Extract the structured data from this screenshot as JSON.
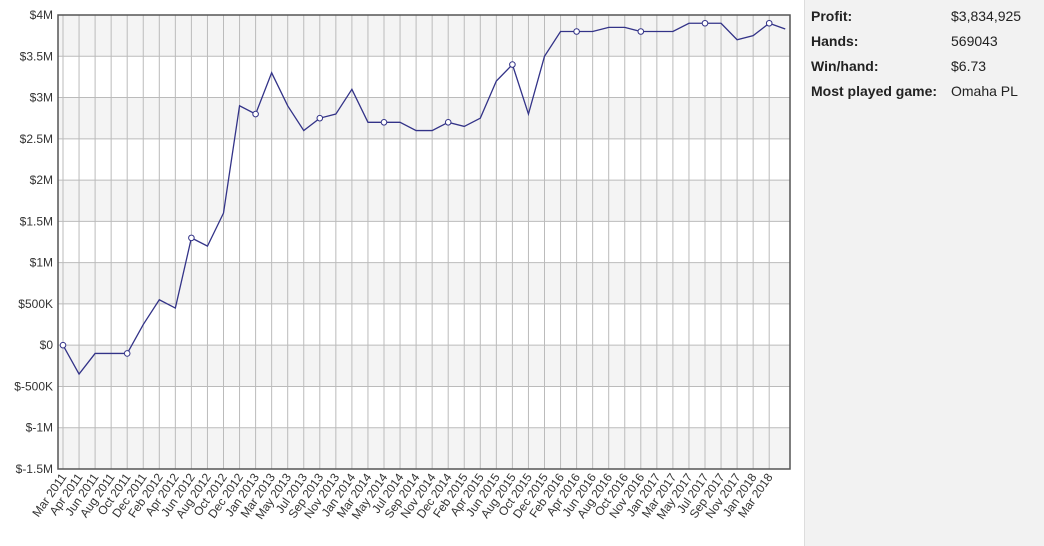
{
  "chart_data": {
    "type": "line",
    "categories": [
      "Mar 2011",
      "Apr 2011",
      "Jun 2011",
      "Aug 2011",
      "Oct 2011",
      "Dec 2011",
      "Feb 2012",
      "Apr 2012",
      "Jun 2012",
      "Aug 2012",
      "Oct 2012",
      "Dec 2012",
      "Jan 2013",
      "Mar 2013",
      "May 2013",
      "Jul 2013",
      "Sep 2013",
      "Nov 2013",
      "Jan 2014",
      "Mar 2014",
      "May 2014",
      "Jul 2014",
      "Sep 2014",
      "Nov 2014",
      "Dec 2014",
      "Feb 2015",
      "Apr 2015",
      "Jun 2015",
      "Aug 2015",
      "Oct 2015",
      "Dec 2015",
      "Feb 2016",
      "Apr 2016",
      "Jun 2016",
      "Aug 2016",
      "Oct 2016",
      "Nov 2016",
      "Jan 2017",
      "Mar 2017",
      "May 2017",
      "Jul 2017",
      "Sep 2017",
      "Nov 2017",
      "Jan 2018",
      "Mar 2018",
      null
    ],
    "series": [
      {
        "color": "#333388",
        "values": [
          0,
          -350000,
          -100000,
          -100000,
          -100000,
          250000,
          550000,
          450000,
          1300000,
          1200000,
          1600000,
          2900000,
          2800000,
          3300000,
          2900000,
          2600000,
          2750000,
          2800000,
          3100000,
          2700000,
          2700000,
          2700000,
          2600000,
          2600000,
          2700000,
          2650000,
          2750000,
          3200000,
          3400000,
          2800000,
          3500000,
          3800000,
          3800000,
          3800000,
          3850000,
          3850000,
          3800000,
          3800000,
          3800000,
          3900000,
          3900000,
          3900000,
          3700000,
          3750000,
          3900000,
          3830000
        ]
      }
    ],
    "ylim": [
      -1500000,
      4000000
    ],
    "yticks": [
      {
        "value": -1500000,
        "label": "$-1.5M"
      },
      {
        "value": -1000000,
        "label": "$-1M"
      },
      {
        "value": -500000,
        "label": "$-500K"
      },
      {
        "value": 0,
        "label": "$0"
      },
      {
        "value": 500000,
        "label": "$500K"
      },
      {
        "value": 1000000,
        "label": "$1M"
      },
      {
        "value": 1500000,
        "label": "$1.5M"
      },
      {
        "value": 2000000,
        "label": "$2M"
      },
      {
        "value": 2500000,
        "label": "$2.5M"
      },
      {
        "value": 3000000,
        "label": "$3M"
      },
      {
        "value": 3500000,
        "label": "$3.5M"
      },
      {
        "value": 4000000,
        "label": "$4M"
      }
    ],
    "grid": true
  },
  "stats": {
    "rows": [
      [
        "Profit:",
        "$3,834,925"
      ],
      [
        "Hands:",
        "569043"
      ],
      [
        "Win/hand:",
        "$6.73"
      ],
      [
        "Most played game:",
        "Omaha PL"
      ]
    ]
  }
}
